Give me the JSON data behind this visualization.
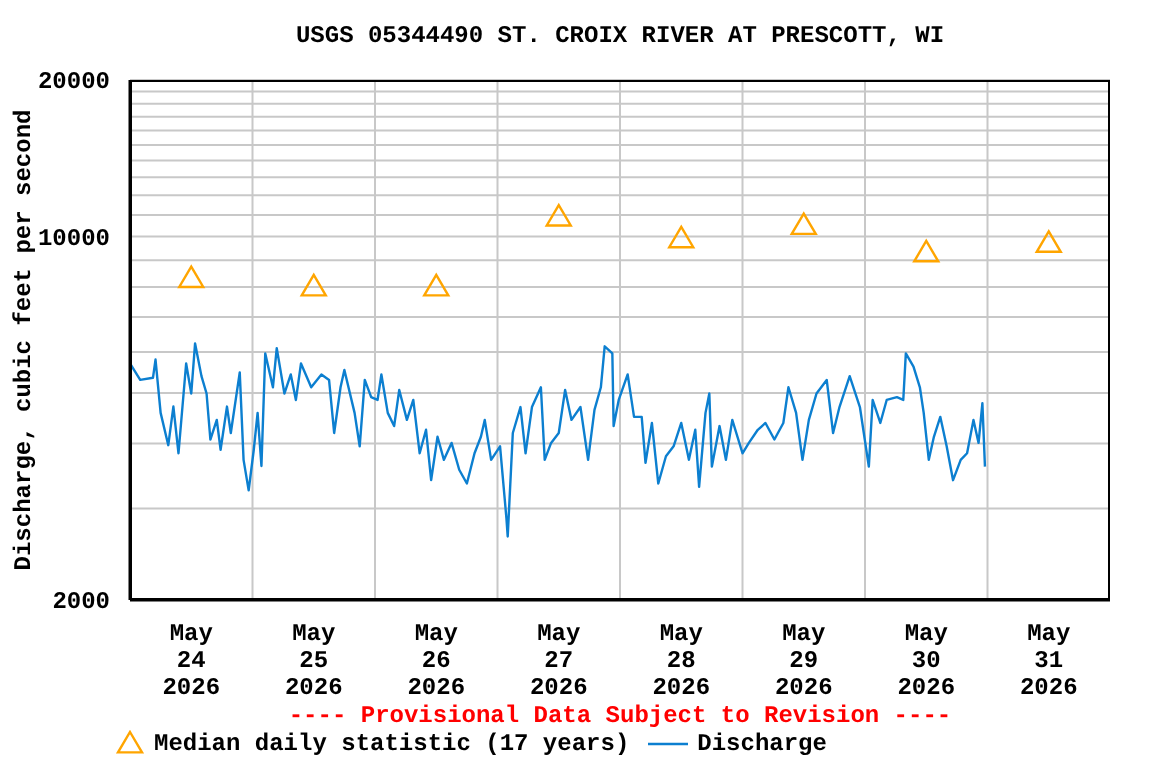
{
  "chart_data": {
    "type": "line",
    "title": "USGS 05344490 ST. CROIX RIVER AT PRESCOTT, WI",
    "ylabel": "Discharge, cubic feet per second",
    "annotations": [
      "---- Provisional Data Subject to Revision ----"
    ],
    "xlim": [
      "2026-05-24T00:00",
      "2026-06-01T00:00"
    ],
    "xticks": [
      {
        "value": "2026-05-24T12:00",
        "label": "May\n24\n2026"
      },
      {
        "value": "2026-05-25T00:00",
        "label": null
      },
      {
        "value": "2026-05-25T12:00",
        "label": "May\n25\n2026"
      },
      {
        "value": "2026-05-26T00:00",
        "label": null
      },
      {
        "value": "2026-05-26T12:00",
        "label": "May\n26\n2026"
      },
      {
        "value": "2026-05-27T00:00",
        "label": null
      },
      {
        "value": "2026-05-27T12:00",
        "label": "May\n27\n2026"
      },
      {
        "value": "2026-05-28T00:00",
        "label": null
      },
      {
        "value": "2026-05-28T12:00",
        "label": "May\n28\n2026"
      },
      {
        "value": "2026-05-29T00:00",
        "label": null
      },
      {
        "value": "2026-05-29T12:00",
        "label": "May\n29\n2026"
      },
      {
        "value": "2026-05-30T00:00",
        "label": null
      },
      {
        "value": "2026-05-30T12:00",
        "label": "May\n30\n2026"
      },
      {
        "value": "2026-05-31T00:00",
        "label": null
      },
      {
        "value": "2026-05-31T12:00",
        "label": "May\n31\n2026"
      }
    ],
    "ylim": [
      2000,
      20000
    ],
    "yticks": [
      {
        "value": 2000,
        "label": "2000"
      },
      {
        "value": 3000,
        "label": null
      },
      {
        "value": 4000,
        "label": null
      },
      {
        "value": 5000,
        "label": null
      },
      {
        "value": 6000,
        "label": null
      },
      {
        "value": 7000,
        "label": null
      },
      {
        "value": 8000,
        "label": null
      },
      {
        "value": 9000,
        "label": null
      },
      {
        "value": 10000,
        "label": "10000"
      },
      {
        "value": 11000,
        "label": null
      },
      {
        "value": 12000,
        "label": null
      },
      {
        "value": 13000,
        "label": null
      },
      {
        "value": 14000,
        "label": null
      },
      {
        "value": 15000,
        "label": null
      },
      {
        "value": 16000,
        "label": null
      },
      {
        "value": 17000,
        "label": null
      },
      {
        "value": 18000,
        "label": null
      },
      {
        "value": 19000,
        "label": null
      },
      {
        "value": 20000,
        "label": "20000"
      }
    ],
    "log": "y",
    "grid": true,
    "legend": "bottom",
    "series": [
      {
        "name": "Median daily statistic (17 years)",
        "type": "scatter",
        "marker": "triangle",
        "color": "#ffa500",
        "x": [
          "2026-05-24T12:00",
          "2026-05-25T12:00",
          "2026-05-26T12:00",
          "2026-05-27T12:00",
          "2026-05-28T12:00",
          "2026-05-29T12:00",
          "2026-05-30T12:00",
          "2026-05-31T12:00"
        ],
        "values": [
          8300,
          8000,
          8000,
          10900,
          9900,
          10500,
          9300,
          9700
        ]
      },
      {
        "name": "Discharge",
        "marker": "none",
        "line_style": "solid",
        "color": "#0c7fd0",
        "x": [
          "2026-05-24T00:00",
          "2026-05-24T02:00",
          "2026-05-24T04:30",
          "2026-05-24T05:00",
          "2026-05-24T06:00",
          "2026-05-24T07:30",
          "2026-05-24T08:30",
          "2026-05-24T09:30",
          "2026-05-24T11:00",
          "2026-05-24T12:00",
          "2026-05-24T12:45",
          "2026-05-24T14:00",
          "2026-05-24T15:00",
          "2026-05-24T15:45",
          "2026-05-24T17:00",
          "2026-05-24T17:45",
          "2026-05-24T19:00",
          "2026-05-24T19:45",
          "2026-05-24T21:30",
          "2026-05-24T22:15",
          "2026-05-24T23:15",
          "2026-05-25T00:15",
          "2026-05-25T01:00",
          "2026-05-25T01:45",
          "2026-05-25T02:30",
          "2026-05-25T04:00",
          "2026-05-25T04:45",
          "2026-05-25T06:15",
          "2026-05-25T07:30",
          "2026-05-25T08:30",
          "2026-05-25T09:30",
          "2026-05-25T11:30",
          "2026-05-25T13:30",
          "2026-05-25T15:00",
          "2026-05-25T16:00",
          "2026-05-25T17:15",
          "2026-05-25T18:00",
          "2026-05-25T20:00",
          "2026-05-25T21:00",
          "2026-05-25T22:00",
          "2026-05-25T23:15",
          "2026-05-26T00:30",
          "2026-05-26T01:15",
          "2026-05-26T02:30",
          "2026-05-26T03:45",
          "2026-05-26T04:45",
          "2026-05-26T06:15",
          "2026-05-26T07:30",
          "2026-05-26T08:45",
          "2026-05-26T10:00",
          "2026-05-26T11:00",
          "2026-05-26T12:15",
          "2026-05-26T13:30",
          "2026-05-26T15:00",
          "2026-05-26T16:30",
          "2026-05-26T18:00",
          "2026-05-26T19:30",
          "2026-05-26T20:45",
          "2026-05-26T21:30",
          "2026-05-26T22:45",
          "2026-05-27T00:30",
          "2026-05-27T01:45",
          "2026-05-27T02:00",
          "2026-05-27T03:00",
          "2026-05-27T04:30",
          "2026-05-27T05:30",
          "2026-05-27T06:45",
          "2026-05-27T08:30",
          "2026-05-27T09:15",
          "2026-05-27T10:30",
          "2026-05-27T12:00",
          "2026-05-27T13:15",
          "2026-05-27T14:30",
          "2026-05-27T16:15",
          "2026-05-27T17:45",
          "2026-05-27T19:00",
          "2026-05-27T20:15",
          "2026-05-27T21:00",
          "2026-05-27T22:30",
          "2026-05-27T22:45",
          "2026-05-27T23:45",
          "2026-05-28T01:30",
          "2026-05-28T02:45",
          "2026-05-28T04:15",
          "2026-05-28T05:00",
          "2026-05-28T06:15",
          "2026-05-28T07:30",
          "2026-05-28T09:00",
          "2026-05-28T10:30",
          "2026-05-28T12:00",
          "2026-05-28T13:30",
          "2026-05-28T14:45",
          "2026-05-28T15:30",
          "2026-05-28T16:45",
          "2026-05-28T17:30",
          "2026-05-28T18:00",
          "2026-05-28T19:30",
          "2026-05-28T20:45",
          "2026-05-28T22:00",
          "2026-05-29T00:00",
          "2026-05-29T01:15",
          "2026-05-29T03:00",
          "2026-05-29T04:30",
          "2026-05-29T06:15",
          "2026-05-29T08:00",
          "2026-05-29T09:00",
          "2026-05-29T10:30",
          "2026-05-29T11:45",
          "2026-05-29T13:00",
          "2026-05-29T14:30",
          "2026-05-29T16:30",
          "2026-05-29T17:45",
          "2026-05-29T19:00",
          "2026-05-29T21:00",
          "2026-05-29T23:00",
          "2026-05-30T00:45",
          "2026-05-30T01:30",
          "2026-05-30T03:00",
          "2026-05-30T04:15",
          "2026-05-30T06:15",
          "2026-05-30T07:30",
          "2026-05-30T08:00",
          "2026-05-30T09:30",
          "2026-05-30T10:45",
          "2026-05-30T11:30",
          "2026-05-30T12:30",
          "2026-05-30T13:30",
          "2026-05-30T14:45",
          "2026-05-30T16:00",
          "2026-05-30T17:15",
          "2026-05-30T18:45",
          "2026-05-30T20:00",
          "2026-05-30T21:15",
          "2026-05-30T22:15",
          "2026-05-30T23:00",
          "2026-05-30T23:30"
        ],
        "values": [
          5700,
          5300,
          5350,
          5800,
          4580,
          3970,
          4710,
          3830,
          5700,
          4990,
          6230,
          5390,
          4990,
          4070,
          4440,
          3890,
          4710,
          4190,
          5480,
          3720,
          3250,
          3890,
          4580,
          3620,
          5960,
          5130,
          6100,
          4990,
          5430,
          4850,
          5700,
          5130,
          5430,
          5300,
          4190,
          5130,
          5540,
          4580,
          3950,
          5300,
          4910,
          4850,
          5430,
          4580,
          4320,
          5070,
          4440,
          4850,
          3830,
          4250,
          3400,
          4120,
          3720,
          4010,
          3560,
          3350,
          3830,
          4120,
          4440,
          3720,
          3950,
          2870,
          2650,
          4190,
          4700,
          3830,
          4700,
          5130,
          3720,
          4010,
          4190,
          5070,
          4440,
          4700,
          3720,
          4640,
          5130,
          6150,
          5960,
          4320,
          4850,
          5430,
          4500,
          4500,
          3670,
          4380,
          3350,
          3780,
          3950,
          4380,
          3720,
          4250,
          3300,
          4580,
          4990,
          3610,
          4320,
          3720,
          4440,
          3830,
          4010,
          4250,
          4380,
          4070,
          4380,
          5130,
          4580,
          3720,
          4440,
          4990,
          5300,
          4190,
          4700,
          5390,
          4700,
          3610,
          4850,
          4380,
          4850,
          4910,
          4850,
          5960,
          5620,
          5130,
          4580,
          3720,
          4120,
          4500,
          3950,
          3400,
          3720,
          3830,
          4440,
          4010,
          4780,
          3610
        ]
      }
    ]
  }
}
